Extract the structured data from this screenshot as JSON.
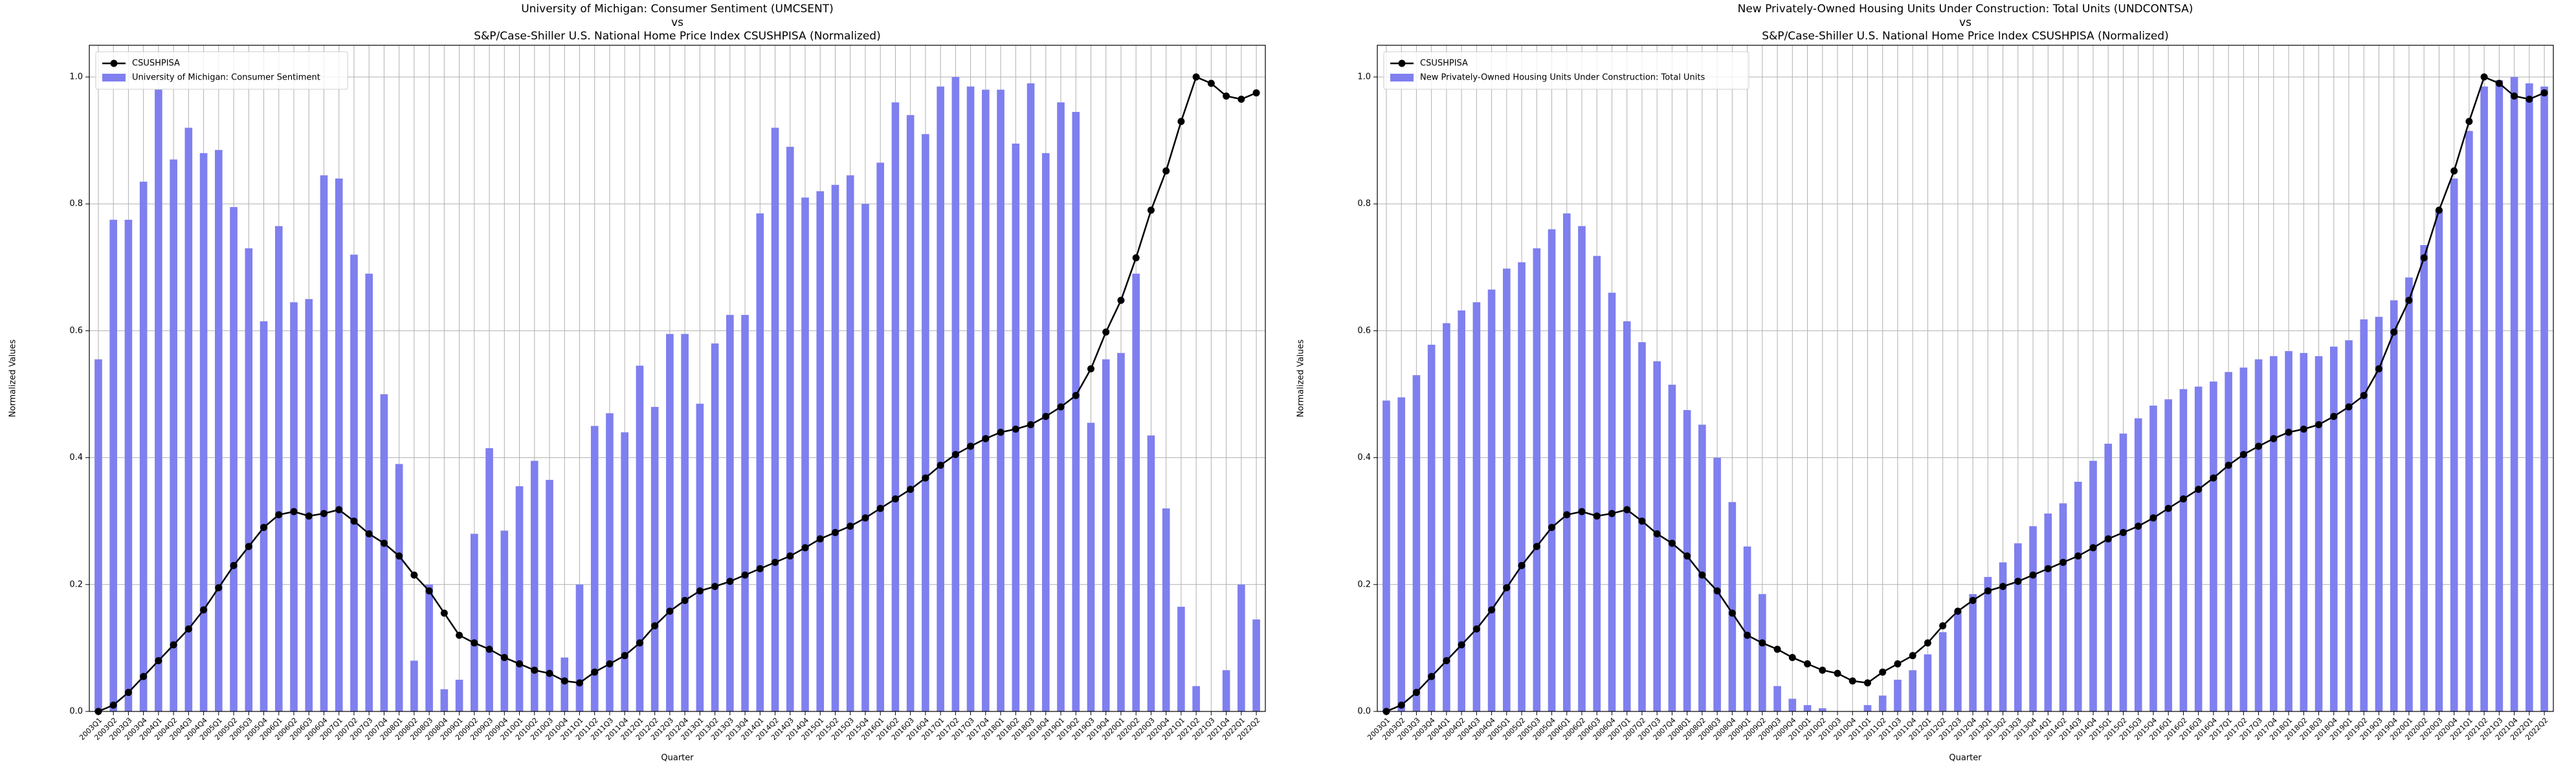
{
  "chart_data": [
    {
      "type": "bar",
      "title": [
        "University of Michigan: Consumer Sentiment (UMCSENT)",
        "vs",
        "S&P/Case-Shiller U.S. National Home Price Index CSUSHPISA (Normalized)"
      ],
      "x_label": "Quarter",
      "y_label": "Normalized Values",
      "categories": [
        "2003Q1",
        "2003Q2",
        "2003Q3",
        "2003Q4",
        "2004Q1",
        "2004Q2",
        "2004Q3",
        "2004Q4",
        "2005Q1",
        "2005Q2",
        "2005Q3",
        "2005Q4",
        "2006Q1",
        "2006Q2",
        "2006Q3",
        "2006Q4",
        "2007Q1",
        "2007Q2",
        "2007Q3",
        "2007Q4",
        "2008Q1",
        "2008Q2",
        "2008Q3",
        "2008Q4",
        "2009Q1",
        "2009Q2",
        "2009Q3",
        "2009Q4",
        "2010Q1",
        "2010Q2",
        "2010Q3",
        "2010Q4",
        "2011Q1",
        "2011Q2",
        "2011Q3",
        "2011Q4",
        "2012Q1",
        "2012Q2",
        "2012Q3",
        "2012Q4",
        "2013Q1",
        "2013Q2",
        "2013Q3",
        "2013Q4",
        "2014Q1",
        "2014Q2",
        "2014Q3",
        "2014Q4",
        "2015Q1",
        "2015Q2",
        "2015Q3",
        "2015Q4",
        "2016Q1",
        "2016Q2",
        "2016Q3",
        "2016Q4",
        "2017Q1",
        "2017Q2",
        "2017Q3",
        "2017Q4",
        "2018Q1",
        "2018Q2",
        "2018Q3",
        "2018Q4",
        "2019Q1",
        "2019Q2",
        "2019Q3",
        "2019Q4",
        "2020Q1",
        "2020Q2",
        "2020Q3",
        "2020Q4",
        "2021Q1",
        "2021Q2",
        "2021Q3",
        "2021Q4",
        "2022Q1",
        "2022Q2"
      ],
      "series": [
        {
          "name": "CSUSHPISA",
          "type": "line",
          "color": "#000000",
          "values": [
            0,
            0.01,
            0.03,
            0.055,
            0.08,
            0.105,
            0.13,
            0.16,
            0.195,
            0.23,
            0.26,
            0.29,
            0.31,
            0.315,
            0.308,
            0.312,
            0.318,
            0.3,
            0.28,
            0.265,
            0.245,
            0.215,
            0.19,
            0.155,
            0.12,
            0.108,
            0.098,
            0.085,
            0.075,
            0.065,
            0.06,
            0.048,
            0.045,
            0.062,
            0.075,
            0.088,
            0.108,
            0.135,
            0.158,
            0.175,
            0.19,
            0.197,
            0.205,
            0.215,
            0.225,
            0.235,
            0.245,
            0.258,
            0.272,
            0.282,
            0.292,
            0.305,
            0.32,
            0.335,
            0.35,
            0.368,
            0.388,
            0.405,
            0.418,
            0.43,
            0.44,
            0.445,
            0.452,
            0.465,
            0.48,
            0.498,
            0.54,
            0.598,
            0.648,
            0.715,
            0.79,
            0.852,
            0.93,
            1.0,
            0.99,
            0.97,
            0.965,
            0.975
          ]
        },
        {
          "name": "University of Michigan: Consumer Sentiment",
          "type": "bar",
          "color": "#7f7fef",
          "values": [
            0.555,
            0.775,
            0.775,
            0.835,
            0.98,
            0.87,
            0.92,
            0.88,
            0.885,
            0.795,
            0.73,
            0.615,
            0.765,
            0.645,
            0.65,
            0.845,
            0.84,
            0.72,
            0.69,
            0.5,
            0.39,
            0.08,
            0.2,
            0.035,
            0.05,
            0.28,
            0.415,
            0.285,
            0.355,
            0.395,
            0.365,
            0.085,
            0.2,
            0.45,
            0.47,
            0.44,
            0.545,
            0.48,
            0.595,
            0.595,
            0.485,
            0.58,
            0.625,
            0.625,
            0.785,
            0.92,
            0.89,
            0.81,
            0.82,
            0.83,
            0.845,
            0.8,
            0.865,
            0.96,
            0.94,
            0.91,
            0.985,
            1.0,
            0.985,
            0.98,
            0.98,
            0.895,
            0.99,
            0.88,
            0.96,
            0.945,
            0.455,
            0.555,
            0.565,
            0.69,
            0.435,
            0.32,
            0.165,
            0.04,
            0,
            0.065,
            0.2,
            0.145
          ]
        }
      ],
      "ylim": [
        0,
        1.05
      ],
      "yticks": [
        {
          "value": 0,
          "label": "0.0"
        },
        {
          "value": 0.2,
          "label": "0.2"
        },
        {
          "value": 0.4,
          "label": "0.4"
        },
        {
          "value": 0.6,
          "label": "0.6"
        },
        {
          "value": 0.8,
          "label": "0.8"
        },
        {
          "value": 1,
          "label": "1.0"
        }
      ],
      "grid": true,
      "legend": "upper left"
    },
    {
      "type": "bar",
      "title": [
        "New Privately-Owned Housing Units Under Construction: Total Units (UNDCONTSA)",
        "vs",
        "S&P/Case-Shiller U.S. National Home Price Index CSUSHPISA (Normalized)"
      ],
      "x_label": "Quarter",
      "y_label": "Normalized Values",
      "categories": [
        "2003Q1",
        "2003Q2",
        "2003Q3",
        "2003Q4",
        "2004Q1",
        "2004Q2",
        "2004Q3",
        "2004Q4",
        "2005Q1",
        "2005Q2",
        "2005Q3",
        "2005Q4",
        "2006Q1",
        "2006Q2",
        "2006Q3",
        "2006Q4",
        "2007Q1",
        "2007Q2",
        "2007Q3",
        "2007Q4",
        "2008Q1",
        "2008Q2",
        "2008Q3",
        "2008Q4",
        "2009Q1",
        "2009Q2",
        "2009Q3",
        "2009Q4",
        "2010Q1",
        "2010Q2",
        "2010Q3",
        "2010Q4",
        "2011Q1",
        "2011Q2",
        "2011Q3",
        "2011Q4",
        "2012Q1",
        "2012Q2",
        "2012Q3",
        "2012Q4",
        "2013Q1",
        "2013Q2",
        "2013Q3",
        "2013Q4",
        "2014Q1",
        "2014Q2",
        "2014Q3",
        "2014Q4",
        "2015Q1",
        "2015Q2",
        "2015Q3",
        "2015Q4",
        "2016Q1",
        "2016Q2",
        "2016Q3",
        "2016Q4",
        "2017Q1",
        "2017Q2",
        "2017Q3",
        "2017Q4",
        "2018Q1",
        "2018Q2",
        "2018Q3",
        "2018Q4",
        "2019Q1",
        "2019Q2",
        "2019Q3",
        "2019Q4",
        "2020Q1",
        "2020Q2",
        "2020Q3",
        "2020Q4",
        "2021Q1",
        "2021Q2",
        "2021Q3",
        "2021Q4",
        "2022Q1",
        "2022Q2"
      ],
      "series": [
        {
          "name": "CSUSHPISA",
          "type": "line",
          "color": "#000000",
          "values": [
            0,
            0.01,
            0.03,
            0.055,
            0.08,
            0.105,
            0.13,
            0.16,
            0.195,
            0.23,
            0.26,
            0.29,
            0.31,
            0.315,
            0.308,
            0.312,
            0.318,
            0.3,
            0.28,
            0.265,
            0.245,
            0.215,
            0.19,
            0.155,
            0.12,
            0.108,
            0.098,
            0.085,
            0.075,
            0.065,
            0.06,
            0.048,
            0.045,
            0.062,
            0.075,
            0.088,
            0.108,
            0.135,
            0.158,
            0.175,
            0.19,
            0.197,
            0.205,
            0.215,
            0.225,
            0.235,
            0.245,
            0.258,
            0.272,
            0.282,
            0.292,
            0.305,
            0.32,
            0.335,
            0.35,
            0.368,
            0.388,
            0.405,
            0.418,
            0.43,
            0.44,
            0.445,
            0.452,
            0.465,
            0.48,
            0.498,
            0.54,
            0.598,
            0.648,
            0.715,
            0.79,
            0.852,
            0.93,
            1.0,
            0.99,
            0.97,
            0.965,
            0.975
          ]
        },
        {
          "name": "New Privately-Owned Housing Units Under Construction: Total Units",
          "type": "bar",
          "color": "#7f7fef",
          "values": [
            0.49,
            0.495,
            0.53,
            0.578,
            0.612,
            0.632,
            0.645,
            0.665,
            0.698,
            0.708,
            0.73,
            0.76,
            0.785,
            0.765,
            0.718,
            0.66,
            0.615,
            0.582,
            0.552,
            0.515,
            0.475,
            0.452,
            0.4,
            0.33,
            0.26,
            0.185,
            0.04,
            0.02,
            0.01,
            0.005,
            0,
            0,
            0.01,
            0.025,
            0.05,
            0.065,
            0.09,
            0.125,
            0.158,
            0.185,
            0.212,
            0.235,
            0.265,
            0.292,
            0.312,
            0.328,
            0.362,
            0.395,
            0.422,
            0.438,
            0.462,
            0.482,
            0.492,
            0.508,
            0.512,
            0.52,
            0.535,
            0.542,
            0.555,
            0.56,
            0.568,
            0.565,
            0.56,
            0.575,
            0.585,
            0.618,
            0.622,
            0.648,
            0.684,
            0.735,
            0.79,
            0.84,
            0.915,
            0.985,
            0.995,
            1.0,
            0.99,
            0.985
          ]
        }
      ],
      "ylim": [
        0,
        1.05
      ],
      "yticks": [
        {
          "value": 0,
          "label": "0.0"
        },
        {
          "value": 0.2,
          "label": "0.2"
        },
        {
          "value": 0.4,
          "label": "0.4"
        },
        {
          "value": 0.6,
          "label": "0.6"
        },
        {
          "value": 0.8,
          "label": "0.8"
        },
        {
          "value": 1,
          "label": "1.0"
        }
      ],
      "grid": true,
      "legend": "upper left"
    }
  ]
}
